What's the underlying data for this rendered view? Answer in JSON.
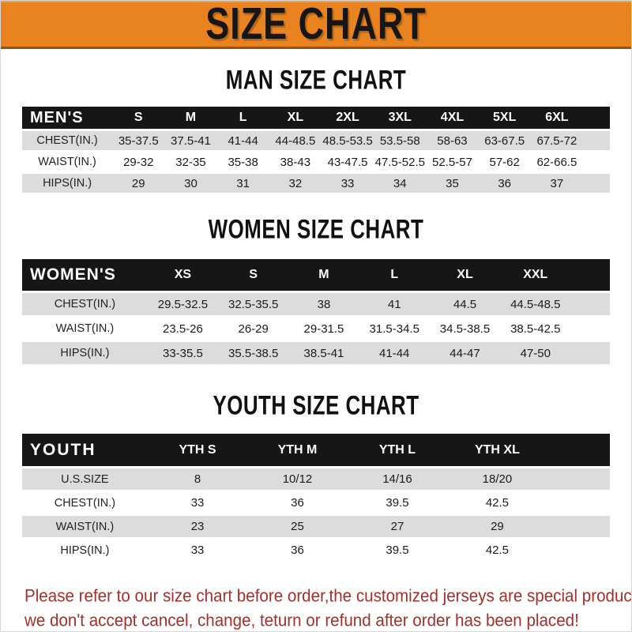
{
  "page": {
    "title": "SIZE CHART",
    "colors": {
      "banner_orange": "#E8831F",
      "table_header_black": "#161616",
      "row_stripe_gray": "#DCDCDC",
      "note_red": "#A3302B"
    }
  },
  "sections": [
    {
      "heading": "MAN SIZE CHART",
      "table": {
        "label": "MEN'S",
        "columns": [
          "S",
          "M",
          "L",
          "XL",
          "2XL",
          "3XL",
          "4XL",
          "5XL",
          "6XL"
        ],
        "rows": [
          {
            "label": "CHEST(IN.)",
            "values": [
              "35-37.5",
              "37.5-41",
              "41-44",
              "44-48.5",
              "48.5-53.5",
              "53.5-58",
              "58-63",
              "63-67.5",
              "67.5-72"
            ]
          },
          {
            "label": "WAIST(IN.)",
            "values": [
              "29-32",
              "32-35",
              "35-38",
              "38-43",
              "43-47.5",
              "47.5-52.5",
              "52.5-57",
              "57-62",
              "62-66.5"
            ]
          },
          {
            "label": "HIPS(IN.)",
            "values": [
              "29",
              "30",
              "31",
              "32",
              "33",
              "34",
              "35",
              "36",
              "37"
            ]
          }
        ]
      }
    },
    {
      "heading": "WOMEN SIZE CHART",
      "table": {
        "label": "WOMEN'S",
        "columns": [
          "XS",
          "S",
          "M",
          "L",
          "XL",
          "XXL"
        ],
        "rows": [
          {
            "label": "CHEST(IN.)",
            "values": [
              "29.5-32.5",
              "32.5-35.5",
              "38",
              "41",
              "44.5",
              "44.5-48.5"
            ]
          },
          {
            "label": "WAIST(IN.)",
            "values": [
              "23.5-26",
              "26-29",
              "29-31.5",
              "31.5-34.5",
              "34.5-38.5",
              "38.5-42.5"
            ]
          },
          {
            "label": "HIPS(IN.)",
            "values": [
              "33-35.5",
              "35.5-38.5",
              "38.5-41",
              "41-44",
              "44-47",
              "47-50"
            ]
          }
        ]
      }
    },
    {
      "heading": "YOUTH SIZE CHART",
      "table": {
        "label": "YOUTH",
        "columns": [
          "YTH S",
          "YTH M",
          "YTH L",
          "YTH XL"
        ],
        "rows": [
          {
            "label": "U.S.SIZE",
            "values": [
              "8",
              "10/12",
              "14/16",
              "18/20"
            ]
          },
          {
            "label": "CHEST(IN.)",
            "values": [
              "33",
              "36",
              "39.5",
              "42.5"
            ]
          },
          {
            "label": "WAIST(IN.)",
            "values": [
              "23",
              "25",
              "27",
              "29"
            ]
          },
          {
            "label": "HIPS(IN.)",
            "values": [
              "33",
              "36",
              "39.5",
              "42.5"
            ]
          }
        ]
      }
    }
  ],
  "footer": {
    "line1": "Please refer to our size chart before order,the customized jerseys are special products,",
    "line2": "we don't accept cancel, change, teturn or refund after order has been placed!"
  }
}
